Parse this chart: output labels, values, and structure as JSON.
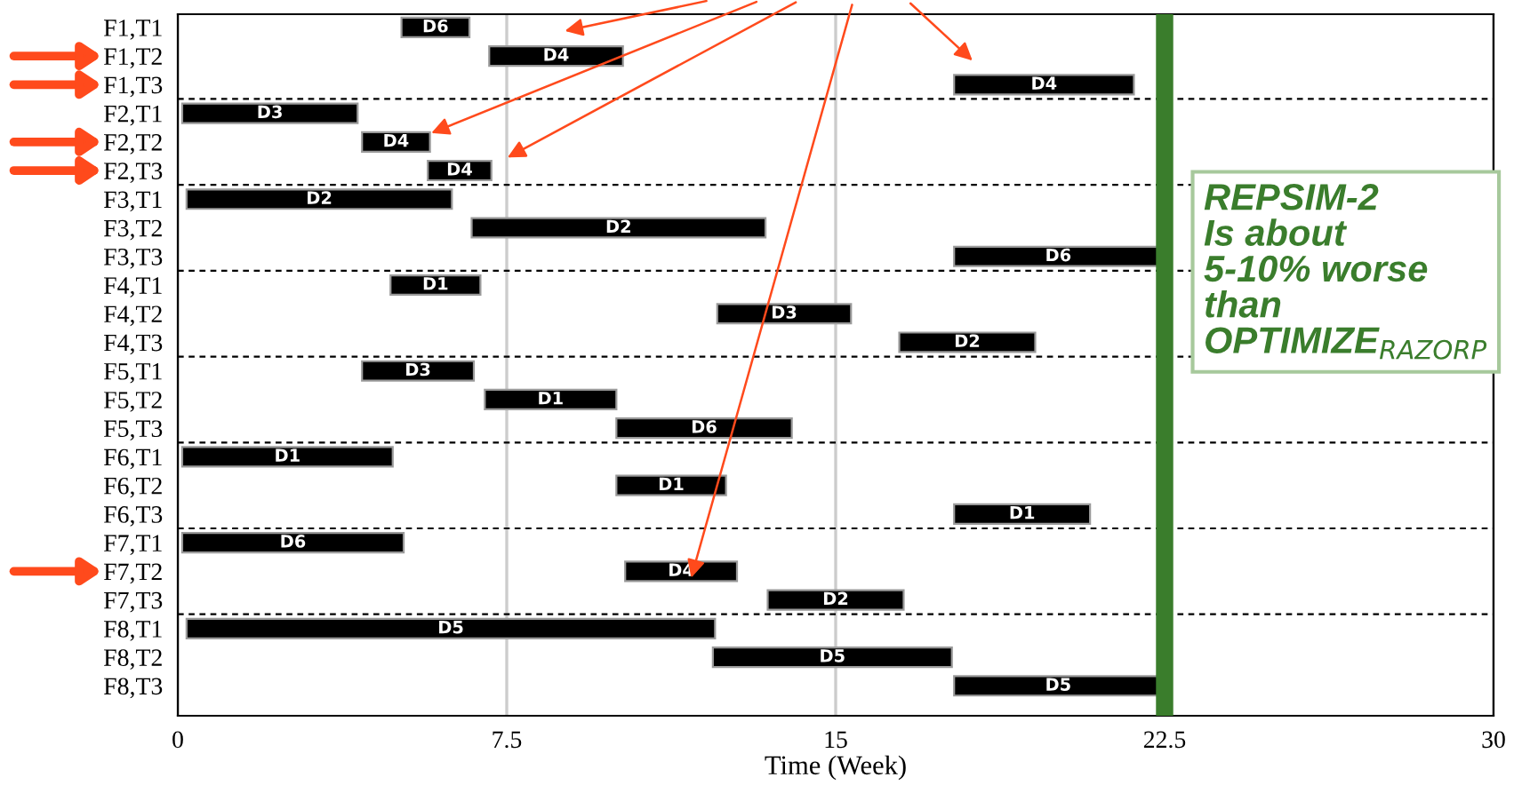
{
  "chart_data": {
    "type": "bar",
    "orientation": "horizontal",
    "xlabel": "Time (Week)",
    "categories": [
      "F1,T1",
      "F1,T2",
      "F1,T3",
      "F2,T1",
      "F2,T2",
      "F2,T3",
      "F3,T1",
      "F3,T2",
      "F3,T3",
      "F4,T1",
      "F4,T2",
      "F4,T3",
      "F5,T1",
      "F5,T2",
      "F5,T3",
      "F6,T1",
      "F6,T2",
      "F6,T3",
      "F7,T1",
      "F7,T2",
      "F7,T3",
      "F8,T1",
      "F8,T2",
      "F8,T3"
    ],
    "base": [
      5.1,
      7.1,
      17.7,
      0.1,
      4.2,
      5.7,
      0.2,
      6.7,
      17.7,
      4.85,
      12.3,
      16.45,
      4.2,
      7.0,
      10.0,
      0.1,
      10.0,
      17.7,
      0.1,
      10.2,
      13.45,
      0.2,
      12.2,
      17.7
    ],
    "values": [
      1.55,
      3.05,
      4.1,
      4.0,
      1.55,
      1.45,
      6.05,
      6.7,
      4.75,
      2.05,
      3.05,
      3.1,
      2.55,
      3.0,
      4.0,
      4.8,
      2.5,
      3.1,
      5.05,
      2.55,
      3.1,
      12.05,
      5.45,
      4.75
    ],
    "value_labels": [
      "D6",
      "D4",
      "D4",
      "D3",
      "D4",
      "D4",
      "D2",
      "D2",
      "D6",
      "D1",
      "D3",
      "D2",
      "D3",
      "D1",
      "D6",
      "D1",
      "D1",
      "D1",
      "D6",
      "D4",
      "D2",
      "D5",
      "D5",
      "D5"
    ],
    "color": "#000000",
    "xlim": [
      0,
      30
    ],
    "xticks": [
      0,
      7.5,
      15,
      22.5,
      30
    ],
    "grid": "x",
    "ref_lines": [
      {
        "axis": "x",
        "value": 22.5,
        "color": "#3a7d2c"
      }
    ],
    "annotations": [
      "REPSIM-2\nIs about\n5-10% worse\nthan\nOPTIMIZE$_{RAZORP}$"
    ]
  }
}
